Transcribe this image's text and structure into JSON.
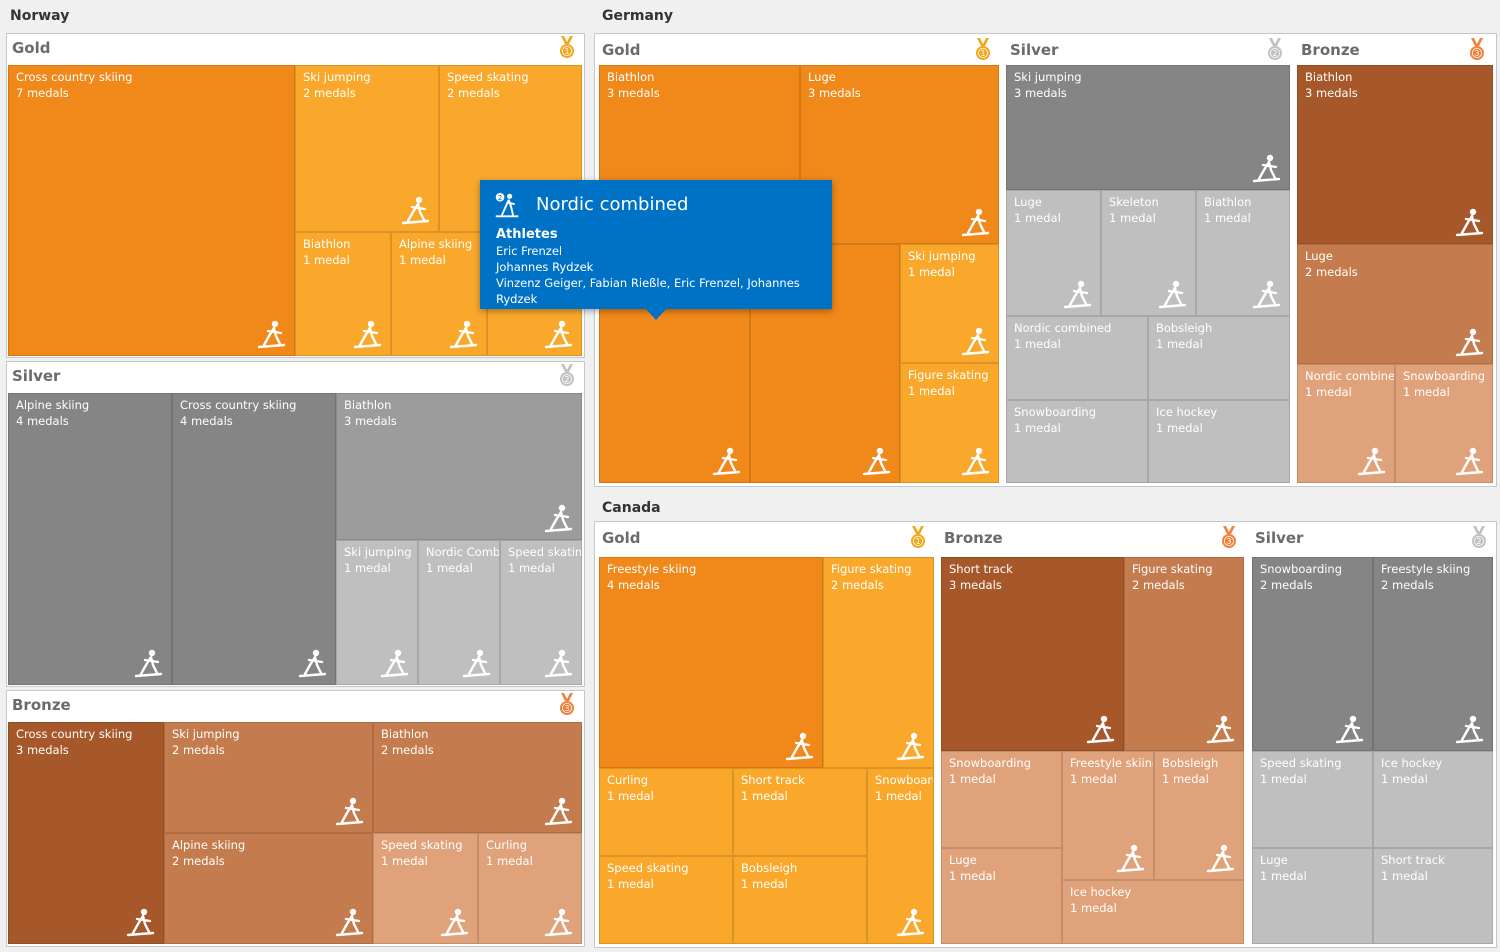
{
  "colors": {
    "Gold": [
      "#f0881a",
      "#f9a82b",
      "#f9a82b"
    ],
    "Silver": [
      "#858585",
      "#9c9c9c",
      "#bfbfbf"
    ],
    "Bronze": [
      "#a6582a",
      "#c47c4e",
      "#e0a27a"
    ],
    "medal": {
      "Gold": "#f0a81e",
      "Silver": "#c2c2c2",
      "Bronze": "#f0823c"
    },
    "tooltip": "#0072c6"
  },
  "countries": [
    {
      "name": "Norway",
      "panels": [
        {
          "medal": "Gold",
          "medal_number": "1",
          "cells": [
            {
              "sport": "Cross country skiing",
              "count": "7 medals",
              "icon": "cross-country-skiing-icon",
              "shade": 0
            },
            {
              "sport": "Ski jumping",
              "count": "2 medals",
              "icon": "ski-jumping-icon",
              "shade": 1
            },
            {
              "sport": "Speed skating",
              "count": "2 medals",
              "icon": "speed-skating-icon",
              "shade": 1
            },
            {
              "sport": "Biathlon",
              "count": "1 medal",
              "icon": "biathlon-icon",
              "shade": 2
            },
            {
              "sport": "Alpine skiing",
              "count": "1 medal",
              "icon": "alpine-skiing-icon",
              "shade": 2
            },
            {
              "sport": "",
              "count": "",
              "icon": "freestyle-skiing-icon",
              "shade": 2
            }
          ]
        },
        {
          "medal": "Silver",
          "medal_number": "2",
          "cells": [
            {
              "sport": "Alpine skiing",
              "count": "4 medals",
              "icon": "alpine-skiing-icon",
              "shade": 0
            },
            {
              "sport": "Cross country skiing",
              "count": "4 medals",
              "icon": "cross-country-skiing-icon",
              "shade": 0
            },
            {
              "sport": "Biathlon",
              "count": "3 medals",
              "icon": "biathlon-icon",
              "shade": 1
            },
            {
              "sport": "Ski jumping",
              "count": "1 medal",
              "icon": "ski-jumping-icon",
              "shade": 2
            },
            {
              "sport": "Nordic Combined",
              "count": "1 medal",
              "icon": "nordic-combined-icon",
              "shade": 2
            },
            {
              "sport": "Speed skating",
              "count": "1 medal",
              "icon": "speed-skating-icon",
              "shade": 2
            }
          ]
        },
        {
          "medal": "Bronze",
          "medal_number": "3",
          "cells": [
            {
              "sport": "Cross country skiing",
              "count": "3 medals",
              "icon": "cross-country-skiing-icon",
              "shade": 0
            },
            {
              "sport": "Ski jumping",
              "count": "2 medals",
              "icon": "ski-jumping-icon",
              "shade": 1
            },
            {
              "sport": "Biathlon",
              "count": "2 medals",
              "icon": "biathlon-icon",
              "shade": 1
            },
            {
              "sport": "Alpine skiing",
              "count": "2 medals",
              "icon": "alpine-skiing-icon",
              "shade": 1
            },
            {
              "sport": "Speed skating",
              "count": "1 medal",
              "icon": "speed-skating-icon",
              "shade": 2
            },
            {
              "sport": "Curling",
              "count": "1 medal",
              "icon": "curling-icon",
              "shade": 2
            }
          ]
        }
      ]
    },
    {
      "name": "Germany",
      "panels": [
        {
          "medal": "Gold",
          "medal_number": "1",
          "cells": [
            {
              "sport": "Biathlon",
              "count": "3 medals",
              "icon": "biathlon-icon",
              "shade": 0
            },
            {
              "sport": "Luge",
              "count": "3 medals",
              "icon": "luge-icon",
              "shade": 0
            },
            {
              "sport": "",
              "count": "",
              "icon": "nordic-combined-icon",
              "shade": 0
            },
            {
              "sport": "",
              "count": "",
              "icon": "bobsleigh-icon",
              "shade": 0
            },
            {
              "sport": "Ski jumping",
              "count": "1 medal",
              "icon": "ski-jumping-icon",
              "shade": 2
            },
            {
              "sport": "Figure skating",
              "count": "1 medal",
              "icon": "figure-skating-icon",
              "shade": 2
            }
          ]
        },
        {
          "medal": "Silver",
          "medal_number": "2",
          "cells": [
            {
              "sport": "Ski jumping",
              "count": "3 medals",
              "icon": "ski-jumping-icon",
              "shade": 0
            },
            {
              "sport": "Luge",
              "count": "1 medal",
              "icon": "luge-icon",
              "shade": 2
            },
            {
              "sport": "Skeleton",
              "count": "1 medal",
              "icon": "skeleton-icon",
              "shade": 2
            },
            {
              "sport": "Biathlon",
              "count": "1 medal",
              "icon": "biathlon-icon",
              "shade": 2
            },
            {
              "sport": "Nordic combined",
              "count": "1 medal",
              "icon": "",
              "shade": 2
            },
            {
              "sport": "Bobsleigh",
              "count": "1 medal",
              "icon": "",
              "shade": 2
            },
            {
              "sport": "Snowboarding",
              "count": "1 medal",
              "icon": "",
              "shade": 2
            },
            {
              "sport": "Ice hockey",
              "count": "1 medal",
              "icon": "",
              "shade": 2
            }
          ]
        },
        {
          "medal": "Bronze",
          "medal_number": "3",
          "cells": [
            {
              "sport": "Biathlon",
              "count": "3 medals",
              "icon": "biathlon-icon",
              "shade": 0
            },
            {
              "sport": "Luge",
              "count": "2 medals",
              "icon": "luge-icon",
              "shade": 1
            },
            {
              "sport": "Nordic combined",
              "count": "1 medal",
              "icon": "nordic-combined-icon",
              "shade": 2
            },
            {
              "sport": "Snowboarding",
              "count": "1 medal",
              "icon": "snowboarding-icon",
              "shade": 2
            }
          ]
        }
      ]
    },
    {
      "name": "Canada",
      "panels": [
        {
          "medal": "Gold",
          "medal_number": "1",
          "cells": [
            {
              "sport": "Freestyle skiing",
              "count": "4 medals",
              "icon": "freestyle-skiing-icon",
              "shade": 0
            },
            {
              "sport": "Figure skating",
              "count": "2 medals",
              "icon": "figure-skating-icon",
              "shade": 1
            },
            {
              "sport": "Curling",
              "count": "1 medal",
              "icon": "curling-icon",
              "shade": 2
            },
            {
              "sport": "Short track",
              "count": "1 medal",
              "icon": "short-track-icon",
              "shade": 2
            },
            {
              "sport": "Snowboarding",
              "count": "1 medal",
              "icon": "snowboarding-icon",
              "shade": 2
            },
            {
              "sport": "Speed skating",
              "count": "1 medal",
              "icon": "speed-skating-icon",
              "shade": 2
            },
            {
              "sport": "Bobsleigh",
              "count": "1 medal",
              "icon": "bobsleigh-icon",
              "shade": 2
            }
          ]
        },
        {
          "medal": "Bronze",
          "medal_number": "3",
          "cells": [
            {
              "sport": "Short track",
              "count": "3 medals",
              "icon": "short-track-icon",
              "shade": 0
            },
            {
              "sport": "Figure skating",
              "count": "2 medals",
              "icon": "figure-skating-icon",
              "shade": 1
            },
            {
              "sport": "Snowboarding",
              "count": "1 medal",
              "icon": "snowboarding-icon",
              "shade": 2
            },
            {
              "sport": "Freestyle skiing",
              "count": "1 medal",
              "icon": "freestyle-skiing-icon",
              "shade": 2
            },
            {
              "sport": "Bobsleigh",
              "count": "1 medal",
              "icon": "bobsleigh-icon",
              "shade": 2
            },
            {
              "sport": "Luge",
              "count": "1 medal",
              "icon": "luge-icon",
              "shade": 2
            },
            {
              "sport": "Ice hockey",
              "count": "1 medal",
              "icon": "",
              "shade": 2
            }
          ]
        },
        {
          "medal": "Silver",
          "medal_number": "2",
          "cells": [
            {
              "sport": "Snowboarding",
              "count": "2 medals",
              "icon": "snowboarding-icon",
              "shade": 0
            },
            {
              "sport": "Freestyle skiing",
              "count": "2 medals",
              "icon": "freestyle-skiing-icon",
              "shade": 0
            },
            {
              "sport": "Speed skating",
              "count": "1 medal",
              "icon": "speed-skating-icon",
              "shade": 2
            },
            {
              "sport": "Ice hockey",
              "count": "1 medal",
              "icon": "ice-hockey-icon",
              "shade": 2
            },
            {
              "sport": "Luge",
              "count": "1 medal",
              "icon": "luge-icon",
              "shade": 2
            },
            {
              "sport": "Short track",
              "count": "1 medal",
              "icon": "short-track-icon",
              "shade": 2
            }
          ]
        }
      ]
    }
  ],
  "tooltip": {
    "title": "Nordic combined",
    "icon": "nordic-combined-icon",
    "subtitle": "Athletes",
    "lines": [
      "Eric Frenzel",
      "Johannes Rydzek",
      "Vinzenz Geiger, Fabian Rießle, Eric Frenzel, Johannes Rydzek"
    ]
  }
}
